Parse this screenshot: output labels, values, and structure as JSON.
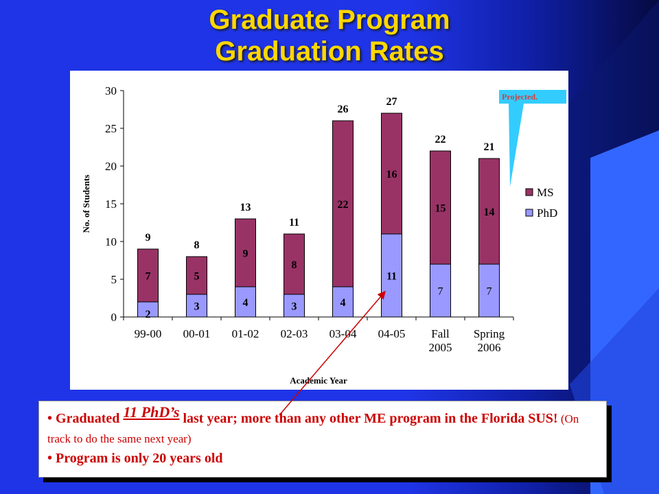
{
  "title_line1": "Graduate Program",
  "title_line2": "Graduation Rates",
  "note": "Projected.",
  "callout": {
    "b1_pre": "Graduated ",
    "b1_emph": "11 PhD’s",
    "b1_post": " last year; more than any other ME program in the Florida SUS!",
    "b1_paren": " (On track to do the same next year)",
    "b2": "Program is only 20 years old",
    "bullet": "•"
  },
  "colors": {
    "ms": "#993366",
    "phd": "#9999ff",
    "title": "#ffd700",
    "callout_text": "#cc0000",
    "note_bg": "#33ccff"
  },
  "chart_data": {
    "type": "bar",
    "stacked": true,
    "categories": [
      [
        "99-00"
      ],
      [
        "00-01"
      ],
      [
        "01-02"
      ],
      [
        "02-03"
      ],
      [
        "03-04"
      ],
      [
        "04-05"
      ],
      [
        "Fall",
        "2005"
      ],
      [
        "Spring",
        "2006"
      ]
    ],
    "series": [
      {
        "name": "PhD",
        "values": [
          2,
          3,
          4,
          3,
          4,
          11,
          7,
          7
        ]
      },
      {
        "name": "MS",
        "values": [
          7,
          5,
          9,
          8,
          22,
          16,
          15,
          14
        ]
      }
    ],
    "totals": [
      9,
      8,
      13,
      11,
      26,
      27,
      22,
      21
    ],
    "ylabel": "No. of Students",
    "xlabel": "Academic Year",
    "ylim": [
      0,
      30
    ],
    "yticks": [
      0,
      5,
      10,
      15,
      20,
      25,
      30
    ],
    "grid": false,
    "legend_position": "right"
  }
}
